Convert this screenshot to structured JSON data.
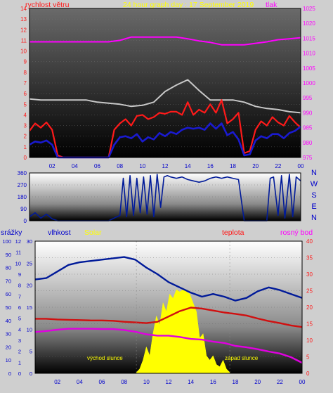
{
  "header": {
    "wind_label": "rychlost větru",
    "title": "24 hour graph day : 17 September 2019",
    "pressure_label": "tlak"
  },
  "wind_dir_labels": [
    "N",
    "W",
    "S",
    "E",
    "N"
  ],
  "bottom_labels": {
    "rain": "srážky",
    "humidity": "vlhkost",
    "solar": "Solar",
    "temperature": "teplota",
    "dewpoint": "rosný bod",
    "sunrise": "východ slunce",
    "sunset": "západ slunce"
  },
  "colors": {
    "wind_avg": "#1a1ad0",
    "wind_gust": "#ff1a1a",
    "wind_max": "#c8c8c8",
    "pressure": "#ff00ff",
    "wind_dir": "#001a99",
    "humidity": "#001a99",
    "temperature": "#d01010",
    "dewpoint": "#e000e0",
    "solar": "#ffff00",
    "header_yellow": "#ffff00",
    "label_red": "#ff1a1a",
    "label_blue": "#0000cc",
    "label_magenta": "#ff00ff"
  },
  "chart_data": [
    {
      "type": "line",
      "title": "24 hour graph day : 17 September 2019",
      "x_ticks": [
        "02",
        "04",
        "06",
        "08",
        "10",
        "12",
        "14",
        "16",
        "18",
        "20",
        "22",
        "00"
      ],
      "y_left_ticks": [
        "0",
        "1",
        "2",
        "3",
        "4",
        "5",
        "6",
        "7",
        "8",
        "9",
        "10",
        "11",
        "12",
        "13",
        "14"
      ],
      "y_left_range": [
        0,
        14
      ],
      "y_right_ticks": [
        "975",
        "980",
        "985",
        "990",
        "995",
        "1000",
        "1005",
        "1010",
        "1015",
        "1020",
        "1025"
      ],
      "y_right_range": [
        975,
        1025
      ],
      "ylabel_left": "rychlost větru",
      "ylabel_right": "tlak",
      "series": [
        {
          "axis": "right",
          "color": "#ff00ff",
          "x": [
            0,
            1,
            2,
            3,
            4,
            5,
            6,
            7,
            8,
            9,
            10,
            11,
            12,
            13,
            14,
            15,
            16,
            17,
            18,
            19,
            20,
            21,
            22,
            23,
            24
          ],
          "values": [
            1013.8,
            1013.8,
            1013.8,
            1013.8,
            1013.8,
            1013.8,
            1013.8,
            1013.8,
            1014.3,
            1015.4,
            1015.4,
            1015.4,
            1015.4,
            1015.4,
            1014.8,
            1014.1,
            1013.6,
            1012.8,
            1012.8,
            1012.8,
            1013.3,
            1013.8,
            1014.5,
            1014.8,
            1015.2
          ]
        },
        {
          "color": "#c8c8c8",
          "x": [
            0,
            1,
            2,
            3,
            4,
            5,
            6,
            7,
            8,
            9,
            10,
            11,
            12,
            13,
            14,
            15,
            16,
            17,
            18,
            19,
            20,
            21,
            22,
            23,
            24
          ],
          "values": [
            5.5,
            5.4,
            5.4,
            5.4,
            5.4,
            5.4,
            5.2,
            5.1,
            5.0,
            4.8,
            4.9,
            5.2,
            6.2,
            6.8,
            7.3,
            6.3,
            5.4,
            5.4,
            5.4,
            5.2,
            4.8,
            4.6,
            4.5,
            4.3,
            4.2
          ]
        },
        {
          "color": "#ff1a1a",
          "x": [
            0,
            0.5,
            1,
            1.5,
            2,
            2.5,
            3,
            4,
            5,
            6,
            7,
            7.5,
            8,
            8.5,
            9,
            9.5,
            10,
            10.5,
            11,
            11.5,
            12,
            12.5,
            13,
            13.5,
            14,
            14.5,
            15,
            15.5,
            16,
            16.5,
            17,
            17.5,
            18,
            18.5,
            19,
            19.5,
            20,
            20.5,
            21,
            21.5,
            22,
            22.5,
            23,
            23.5,
            24
          ],
          "values": [
            2.5,
            3.2,
            2.8,
            3.3,
            2.6,
            0.2,
            0,
            0,
            0,
            0,
            0,
            2.6,
            3.2,
            3.6,
            3.0,
            3.9,
            4.0,
            3.6,
            3.8,
            4.2,
            4.1,
            4.3,
            4.3,
            4.0,
            5.2,
            4.0,
            4.5,
            4.2,
            5.0,
            4.2,
            5.4,
            3.2,
            3.6,
            4.2,
            0.4,
            0.6,
            2.6,
            3.4,
            3.0,
            3.8,
            3.3,
            3.0,
            3.9,
            3.3,
            2.8
          ]
        },
        {
          "color": "#1a1ad0",
          "x": [
            0,
            0.5,
            1,
            1.5,
            2,
            2.5,
            3,
            4,
            5,
            6,
            7,
            7.5,
            8,
            8.5,
            9,
            9.5,
            10,
            10.5,
            11,
            11.5,
            12,
            12.5,
            13,
            13.5,
            14,
            14.5,
            15,
            15.5,
            16,
            16.5,
            17,
            17.5,
            18,
            18.5,
            19,
            19.5,
            20,
            20.5,
            21,
            21.5,
            22,
            22.5,
            23,
            23.5,
            24
          ],
          "values": [
            1.2,
            1.5,
            1.4,
            1.6,
            1.2,
            0,
            0,
            0,
            0,
            0,
            0,
            1.2,
            1.9,
            2.0,
            1.8,
            2.2,
            1.5,
            1.9,
            1.7,
            2.3,
            2.0,
            2.4,
            2.2,
            2.6,
            2.8,
            2.7,
            2.8,
            2.6,
            3.2,
            2.7,
            3.2,
            2.1,
            2.4,
            1.7,
            0.2,
            0.3,
            1.6,
            2.0,
            1.8,
            2.2,
            2.2,
            1.8,
            2.3,
            2.5,
            2.9
          ]
        }
      ]
    },
    {
      "type": "line",
      "y_ticks": [
        "0",
        "90",
        "180",
        "270",
        "360"
      ],
      "y_range": [
        0,
        360
      ],
      "x_ticks": [
        "02",
        "04",
        "06",
        "08",
        "10",
        "12",
        "14",
        "16",
        "18",
        "20",
        "22",
        "00"
      ],
      "series": [
        {
          "color": "#001a99",
          "x": [
            0,
            0.5,
            1,
            1.5,
            2,
            2.5,
            3,
            4,
            5,
            6,
            7,
            7.5,
            8,
            8.3,
            8.6,
            8.9,
            9.2,
            9.5,
            9.8,
            10.1,
            10.4,
            10.7,
            11,
            11.3,
            11.6,
            11.9,
            12.2,
            12.5,
            13,
            13.5,
            14,
            14.5,
            15,
            15.5,
            16,
            16.5,
            17,
            17.5,
            18,
            18.5,
            19,
            19.5,
            20,
            21,
            21.3,
            21.6,
            22,
            22.3,
            22.6,
            23,
            23.3,
            23.6,
            24
          ],
          "values": [
            30,
            60,
            20,
            50,
            15,
            0,
            0,
            0,
            0,
            0,
            0,
            20,
            40,
            320,
            30,
            340,
            40,
            320,
            60,
            330,
            50,
            340,
            30,
            350,
            100,
            330,
            340,
            330,
            320,
            330,
            310,
            300,
            290,
            300,
            320,
            330,
            320,
            330,
            320,
            310,
            0,
            0,
            0,
            0,
            320,
            330,
            40,
            340,
            20,
            350,
            30,
            330,
            300
          ]
        }
      ]
    },
    {
      "type": "line",
      "x_ticks": [
        "02",
        "04",
        "06",
        "08",
        "10",
        "12",
        "14",
        "16",
        "18",
        "20",
        "22",
        "00"
      ],
      "y_far_left_ticks": [
        "0",
        "10",
        "20",
        "30",
        "40",
        "50",
        "60",
        "70",
        "80",
        "90",
        "100"
      ],
      "y_far_left_range": [
        0,
        100
      ],
      "y_left_ticks": [
        "0",
        "1",
        "2",
        "3",
        "4",
        "5",
        "6",
        "7",
        "8",
        "9",
        "10",
        "11",
        "12"
      ],
      "y_left_range": [
        0,
        12
      ],
      "y_mid_ticks": [
        "0",
        "5",
        "10",
        "15",
        "20",
        "25",
        "30"
      ],
      "y_mid_range": [
        0,
        30
      ],
      "y_right_ticks": [
        "0",
        "5",
        "10",
        "15",
        "20",
        "25",
        "30",
        "35",
        "40"
      ],
      "y_right_range": [
        0,
        40
      ],
      "annotations": [
        "východ slunce",
        "západ slunce"
      ],
      "series": [
        {
          "color": "#001a99",
          "axis": "far-left",
          "x": [
            0,
            1,
            2,
            3,
            4,
            5,
            6,
            7,
            8,
            9,
            10,
            11,
            12,
            13,
            14,
            15,
            16,
            17,
            18,
            19,
            20,
            21,
            22,
            23,
            24
          ],
          "values": [
            71,
            72,
            77,
            82,
            84,
            85,
            86,
            87,
            88,
            86,
            80,
            75,
            69,
            65,
            61,
            58,
            60,
            58,
            55,
            57,
            62,
            65,
            63,
            60,
            57
          ]
        },
        {
          "color": "#d01010",
          "axis": "right",
          "x": [
            0,
            1,
            2,
            3,
            4,
            5,
            6,
            7,
            8,
            9,
            10,
            11,
            12,
            13,
            14,
            15,
            16,
            17,
            18,
            19,
            20,
            21,
            22,
            23,
            24
          ],
          "values": [
            16.5,
            16.5,
            16.3,
            16.2,
            16.1,
            16.0,
            16.0,
            15.9,
            15.6,
            15.4,
            15.2,
            15.6,
            17.2,
            18.8,
            19.9,
            19.6,
            19.0,
            18.4,
            18.0,
            17.5,
            16.6,
            15.8,
            15.2,
            14.5,
            14.0
          ]
        },
        {
          "color": "#e000e0",
          "axis": "right",
          "x": [
            0,
            1,
            2,
            3,
            4,
            5,
            6,
            7,
            8,
            9,
            10,
            11,
            12,
            13,
            14,
            15,
            16,
            17,
            18,
            19,
            20,
            21,
            22,
            23,
            24
          ],
          "values": [
            12.5,
            12.8,
            13.2,
            13.5,
            13.5,
            13.5,
            13.4,
            13.4,
            13.1,
            12.6,
            11.8,
            11.4,
            11.4,
            11.0,
            10.4,
            10.2,
            9.6,
            9.2,
            8.3,
            7.9,
            7.3,
            6.6,
            6.0,
            4.9,
            3.2
          ]
        },
        {
          "color": "#ffff00",
          "axis": "mid",
          "type": "area",
          "x": [
            9.1,
            9.4,
            9.7,
            10.0,
            10.3,
            10.6,
            10.9,
            11.2,
            11.5,
            11.8,
            12.1,
            12.4,
            12.7,
            13.0,
            13.3,
            13.6,
            13.9,
            14.2,
            14.5,
            14.8,
            15.1,
            15.4,
            15.7,
            16.0,
            16.3,
            16.6,
            16.9,
            17.2,
            17.5
          ],
          "values": [
            0.2,
            1.0,
            3.0,
            6.0,
            4.0,
            9.0,
            13.0,
            11.0,
            16.0,
            14.0,
            18.0,
            17.0,
            19.0,
            18.5,
            19.0,
            18.5,
            18.0,
            16.0,
            14.0,
            8.0,
            9.0,
            4.0,
            3.0,
            4.0,
            2.0,
            1.5,
            3.0,
            1.0,
            0.2
          ]
        }
      ]
    }
  ]
}
